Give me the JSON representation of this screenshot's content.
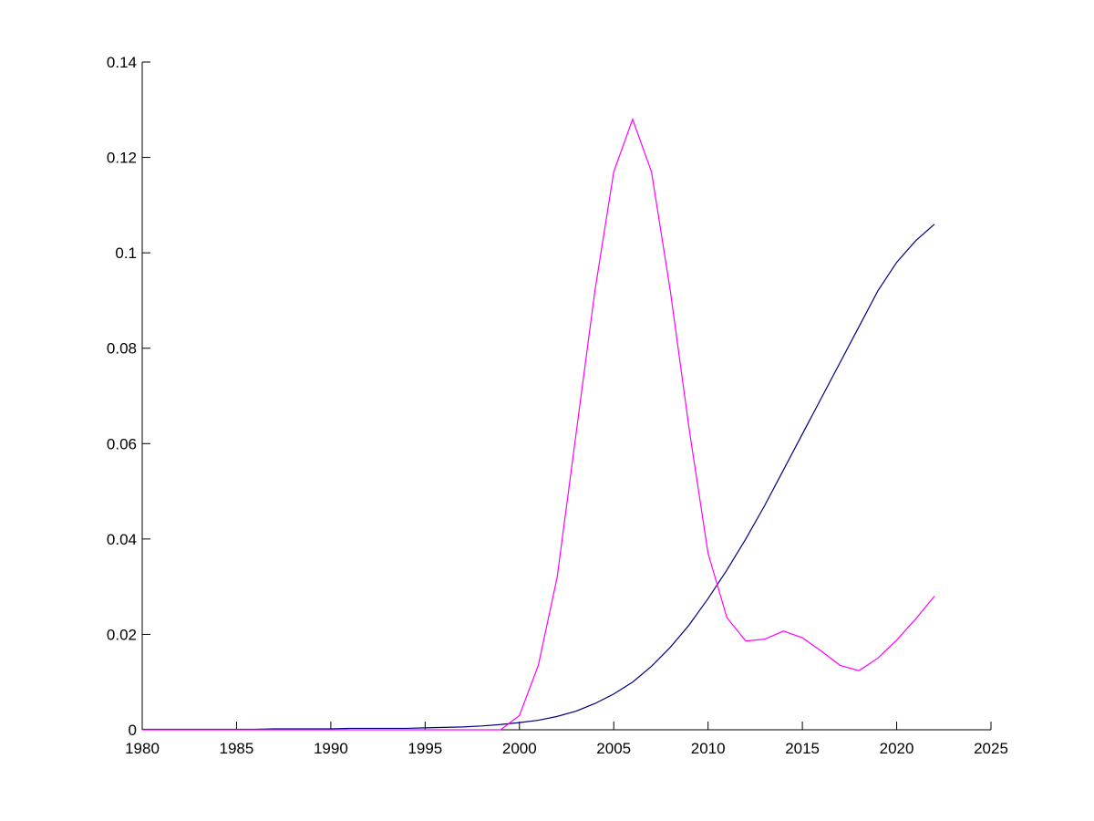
{
  "chart_data": {
    "type": "line",
    "x": [
      1980,
      1981,
      1982,
      1983,
      1984,
      1985,
      1986,
      1987,
      1988,
      1989,
      1990,
      1991,
      1992,
      1993,
      1994,
      1995,
      1996,
      1997,
      1998,
      1999,
      2000,
      2001,
      2002,
      2003,
      2004,
      2005,
      2006,
      2007,
      2008,
      2009,
      2010,
      2011,
      2012,
      2013,
      2014,
      2015,
      2016,
      2017,
      2018,
      2019,
      2020,
      2021,
      2022
    ],
    "series": [
      {
        "color": "#000080",
        "values": [
          0.0001,
          0.0001,
          0.0001,
          0.0001,
          0.0001,
          0.0001,
          0.0001,
          0.0002,
          0.0002,
          0.0002,
          0.0002,
          0.0003,
          0.0003,
          0.0003,
          0.0003,
          0.0004,
          0.0005,
          0.0006,
          0.0008,
          0.0011,
          0.0015,
          0.002,
          0.0028,
          0.0039,
          0.0055,
          0.0075,
          0.01,
          0.0133,
          0.0173,
          0.022,
          0.0275,
          0.0335,
          0.04,
          0.047,
          0.0545,
          0.062,
          0.0695,
          0.077,
          0.0845,
          0.092,
          0.098,
          0.1025,
          0.106
        ]
      },
      {
        "color": "#ff00ff",
        "values": [
          0,
          0,
          0,
          0,
          0,
          0,
          0,
          0,
          0,
          0,
          0,
          0,
          0,
          0,
          0,
          0,
          0,
          0,
          0,
          0,
          0.003,
          0.0135,
          0.032,
          0.062,
          0.092,
          0.117,
          0.128,
          0.117,
          0.092,
          0.063,
          0.037,
          0.0235,
          0.0186,
          0.019,
          0.0207,
          0.0193,
          0.0165,
          0.0135,
          0.0124,
          0.015,
          0.0188,
          0.0232,
          0.028
        ]
      }
    ],
    "xlim": [
      1980,
      2025
    ],
    "xticks": [
      1980,
      1985,
      1990,
      1995,
      2000,
      2005,
      2010,
      2015,
      2020,
      2025
    ],
    "ylim": [
      0,
      0.14
    ],
    "yticks": [
      0,
      0.02,
      0.04,
      0.06,
      0.08,
      0.1,
      0.12,
      0.14
    ]
  }
}
